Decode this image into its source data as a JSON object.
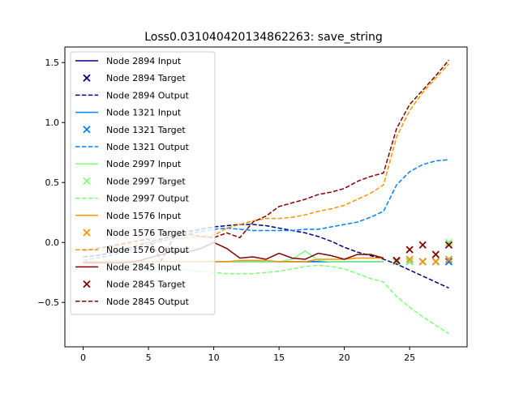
{
  "chart_data": {
    "type": "line",
    "title": "Loss0.031040420134862263: save_string",
    "xlabel": "",
    "ylabel": "",
    "xlim": [
      -1.4,
      29.4
    ],
    "ylim": [
      -0.87,
      1.63
    ],
    "xticks": [
      0,
      5,
      10,
      15,
      20,
      25
    ],
    "yticks": [
      -0.5,
      0.0,
      0.5,
      1.0,
      1.5
    ],
    "ytick_labels": [
      "−0.5",
      "0.0",
      "0.5",
      "1.0",
      "1.5"
    ],
    "grid": false,
    "legend_position": "upper-left",
    "series": [
      {
        "node": "Node 2894",
        "color": "#000080",
        "input": {
          "name": "Node 2894 Input",
          "x": [
            0,
            1,
            2,
            3,
            4,
            5,
            6,
            7,
            8,
            9,
            10,
            11,
            12,
            13,
            14,
            15,
            16,
            17,
            18,
            19,
            20,
            21,
            22,
            23
          ],
          "y": [
            -0.16,
            -0.16,
            -0.16,
            -0.16,
            -0.16,
            -0.16,
            -0.16,
            -0.16,
            -0.16,
            -0.16,
            -0.16,
            -0.16,
            -0.16,
            -0.16,
            -0.16,
            -0.16,
            -0.16,
            -0.16,
            -0.16,
            -0.16,
            -0.16,
            -0.16,
            -0.16,
            -0.16
          ]
        },
        "target": {
          "name": "Node 2894 Target",
          "x": [
            24,
            25,
            26,
            27,
            28
          ],
          "y": [
            -0.16,
            -0.16,
            -0.16,
            -0.16,
            -0.16
          ]
        },
        "output": {
          "name": "Node 2894 Output",
          "x": [
            0,
            1,
            2,
            3,
            4,
            5,
            6,
            7,
            8,
            9,
            10,
            11,
            12,
            13,
            14,
            15,
            16,
            17,
            18,
            19,
            20,
            21,
            22,
            23,
            24,
            25,
            26,
            27,
            28
          ],
          "y": [
            -0.12,
            -0.11,
            -0.09,
            -0.06,
            -0.03,
            0.0,
            0.03,
            0.06,
            0.09,
            0.11,
            0.13,
            0.14,
            0.15,
            0.15,
            0.14,
            0.12,
            0.1,
            0.08,
            0.05,
            0.01,
            -0.04,
            -0.08,
            -0.11,
            -0.14,
            -0.18,
            -0.23,
            -0.28,
            -0.33,
            -0.38
          ]
        }
      },
      {
        "node": "Node 1321",
        "color": "#0080ff",
        "input": {
          "name": "Node 1321 Input",
          "x": [
            0,
            1,
            2,
            3,
            4,
            5,
            6,
            7,
            8,
            9,
            10,
            11,
            12,
            13,
            14,
            15,
            16,
            17,
            18,
            19,
            20,
            21,
            22,
            23
          ],
          "y": [
            -0.16,
            -0.16,
            -0.16,
            -0.16,
            -0.16,
            -0.16,
            -0.16,
            -0.16,
            -0.16,
            -0.16,
            -0.16,
            -0.16,
            -0.16,
            -0.16,
            -0.16,
            -0.16,
            -0.16,
            -0.16,
            -0.16,
            -0.16,
            -0.16,
            -0.16,
            -0.16,
            -0.16
          ]
        },
        "target": {
          "name": "Node 1321 Target",
          "x": [
            24,
            25,
            26,
            27,
            28
          ],
          "y": [
            -0.16,
            -0.16,
            -0.16,
            -0.16,
            -0.16
          ]
        },
        "output": {
          "name": "Node 1321 Output",
          "x": [
            0,
            1,
            2,
            3,
            4,
            5,
            6,
            7,
            8,
            9,
            10,
            11,
            12,
            13,
            14,
            15,
            16,
            17,
            18,
            19,
            20,
            21,
            22,
            23,
            24,
            25,
            26,
            27,
            28
          ],
          "y": [
            -0.15,
            -0.13,
            -0.11,
            -0.08,
            -0.05,
            -0.02,
            0.01,
            0.04,
            0.07,
            0.09,
            0.11,
            0.12,
            0.11,
            0.1,
            0.1,
            0.1,
            0.1,
            0.11,
            0.11,
            0.13,
            0.15,
            0.17,
            0.21,
            0.26,
            0.48,
            0.59,
            0.65,
            0.68,
            0.69
          ]
        }
      },
      {
        "node": "Node 2997",
        "color": "#7dff7a",
        "input": {
          "name": "Node 2997 Input",
          "x": [
            0,
            1,
            2,
            3,
            4,
            5,
            6,
            7,
            8,
            9,
            10,
            11,
            12,
            13,
            14,
            15,
            16,
            17,
            18,
            19,
            20,
            21,
            22,
            23
          ],
          "y": [
            -0.16,
            -0.16,
            -0.16,
            -0.16,
            -0.16,
            -0.16,
            -0.16,
            -0.16,
            -0.16,
            -0.16,
            -0.16,
            -0.16,
            -0.16,
            -0.16,
            -0.16,
            -0.16,
            -0.14,
            -0.07,
            -0.15,
            -0.16,
            -0.16,
            -0.16,
            -0.16,
            -0.16
          ]
        },
        "target": {
          "name": "Node 2997 Target",
          "x": [
            24,
            25,
            26,
            27,
            28
          ],
          "y": [
            -0.16,
            -0.16,
            -0.16,
            -0.16,
            0.0
          ]
        },
        "output": {
          "name": "Node 2997 Output",
          "x": [
            0,
            1,
            2,
            3,
            4,
            5,
            6,
            7,
            8,
            9,
            10,
            11,
            12,
            13,
            14,
            15,
            16,
            17,
            18,
            19,
            20,
            21,
            22,
            23,
            24,
            25,
            26,
            27,
            28
          ],
          "y": [
            -0.15,
            -0.16,
            -0.17,
            -0.18,
            -0.19,
            -0.2,
            -0.21,
            -0.22,
            -0.23,
            -0.24,
            -0.25,
            -0.26,
            -0.26,
            -0.26,
            -0.25,
            -0.24,
            -0.22,
            -0.2,
            -0.19,
            -0.2,
            -0.22,
            -0.26,
            -0.3,
            -0.33,
            -0.45,
            -0.54,
            -0.62,
            -0.69,
            -0.76
          ]
        }
      },
      {
        "node": "Node 1576",
        "color": "#ff9400",
        "input": {
          "name": "Node 1576 Input",
          "x": [
            0,
            1,
            2,
            3,
            4,
            5,
            6,
            7,
            8,
            9,
            10,
            11,
            12,
            13,
            14,
            15,
            16,
            17,
            18,
            19,
            20,
            21,
            22,
            23
          ],
          "y": [
            -0.16,
            -0.16,
            -0.16,
            -0.16,
            -0.16,
            -0.16,
            -0.16,
            -0.16,
            -0.16,
            -0.16,
            -0.16,
            -0.16,
            -0.15,
            -0.15,
            -0.15,
            -0.16,
            -0.16,
            -0.16,
            -0.14,
            -0.14,
            -0.14,
            -0.13,
            -0.13,
            -0.13
          ]
        },
        "target": {
          "name": "Node 1576 Target",
          "x": [
            24,
            25,
            26,
            27,
            28
          ],
          "y": [
            -0.15,
            -0.14,
            -0.16,
            -0.16,
            -0.14
          ]
        },
        "output": {
          "name": "Node 1576 Output",
          "x": [
            0,
            1,
            2,
            3,
            4,
            5,
            6,
            7,
            8,
            9,
            10,
            11,
            12,
            13,
            14,
            15,
            16,
            17,
            18,
            19,
            20,
            21,
            22,
            23,
            24,
            25,
            26,
            27,
            28
          ],
          "y": [
            -0.06,
            -0.05,
            -0.04,
            -0.02,
            -0.01,
            0.0,
            0.02,
            0.03,
            0.04,
            0.05,
            0.06,
            0.12,
            0.15,
            0.18,
            0.2,
            0.2,
            0.21,
            0.23,
            0.26,
            0.28,
            0.31,
            0.36,
            0.41,
            0.48,
            0.88,
            1.1,
            1.25,
            1.37,
            1.49
          ]
        }
      },
      {
        "node": "Node 2845",
        "color": "#800000",
        "input": {
          "name": "Node 2845 Input",
          "x": [
            0,
            1,
            2,
            3,
            4,
            5,
            6,
            7,
            8,
            9,
            10,
            11,
            12,
            13,
            14,
            15,
            16,
            17,
            18,
            19,
            20,
            21,
            22,
            23
          ],
          "y": [
            -0.17,
            -0.17,
            -0.17,
            -0.17,
            -0.16,
            -0.13,
            -0.1,
            -0.07,
            -0.08,
            -0.05,
            0.0,
            -0.05,
            -0.13,
            -0.12,
            -0.14,
            -0.09,
            -0.13,
            -0.14,
            -0.09,
            -0.11,
            -0.14,
            -0.1,
            -0.1,
            -0.13
          ]
        },
        "target": {
          "name": "Node 2845 Target",
          "x": [
            24,
            25,
            26,
            27,
            28
          ],
          "y": [
            -0.15,
            -0.06,
            -0.02,
            -0.1,
            -0.02
          ]
        },
        "output": {
          "name": "Node 2845 Output",
          "x": [
            0,
            1,
            2,
            3,
            4,
            5,
            6,
            7,
            8,
            9,
            10,
            11,
            12,
            13,
            14,
            15,
            16,
            17,
            18,
            19,
            20,
            21,
            22,
            23,
            24,
            25,
            26,
            27,
            28
          ],
          "y": [
            -0.07,
            -0.05,
            -0.03,
            -0.01,
            0.01,
            0.03,
            -0.15,
            0.06,
            0.07,
            0.05,
            0.04,
            0.08,
            0.04,
            0.17,
            0.22,
            0.3,
            0.33,
            0.36,
            0.4,
            0.42,
            0.45,
            0.51,
            0.55,
            0.58,
            0.95,
            1.15,
            1.27,
            1.39,
            1.52
          ]
        }
      }
    ]
  }
}
